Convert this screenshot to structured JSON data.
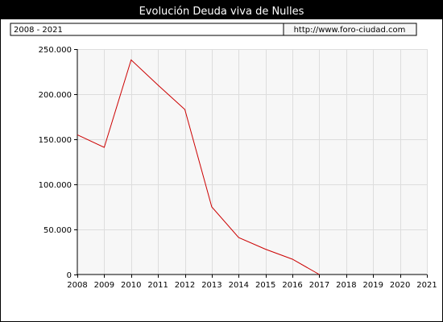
{
  "header": {
    "title": "Evolución Deuda viva de Nulles",
    "period": "2008 - 2021",
    "url": "http://www.foro-ciudad.com"
  },
  "colors": {
    "outer_background": "#000000",
    "panel_background": "#ffffff",
    "plot_background": "#f7f7f7",
    "grid": "#dddddd",
    "series_line": "#cc0000",
    "title_text": "#ffffff",
    "axis_text": "#000000"
  },
  "chart_data": {
    "type": "line",
    "title": "Evolución Deuda viva de Nulles",
    "xlabel": "",
    "ylabel": "",
    "x": [
      2008,
      2009,
      2010,
      2011,
      2012,
      2013,
      2014,
      2015,
      2016,
      2017
    ],
    "series": [
      {
        "values": [
          155000,
          141000,
          238000,
          210000,
          183000,
          75000,
          41000,
          28000,
          17000,
          0
        ]
      }
    ],
    "xlim": [
      2008,
      2021
    ],
    "ylim": [
      0,
      250000
    ],
    "x_ticks": [
      "2008",
      "2009",
      "2010",
      "2011",
      "2012",
      "2013",
      "2014",
      "2015",
      "2016",
      "2017",
      "2018",
      "2019",
      "2020",
      "2021"
    ],
    "y_ticks": [
      {
        "value": 0,
        "label": "0"
      },
      {
        "value": 50000,
        "label": "50.000"
      },
      {
        "value": 100000,
        "label": "100.000"
      },
      {
        "value": 150000,
        "label": "150.000"
      },
      {
        "value": 200000,
        "label": "200.000"
      },
      {
        "value": 250000,
        "label": "250.000"
      }
    ],
    "grid": true,
    "legend": "none"
  }
}
